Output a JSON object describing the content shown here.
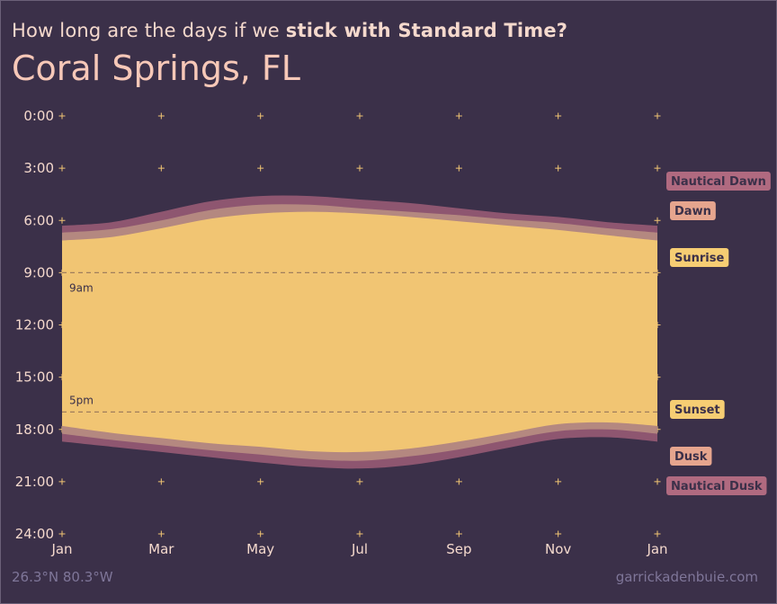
{
  "header": {
    "subtitle_prefix": "How long are the days if we ",
    "subtitle_bold": "stick with Standard Time?",
    "title": "Coral Springs, FL"
  },
  "footer": {
    "coords": "26.3°N 80.3°W",
    "credit": "garrickadenbuie.com"
  },
  "colors": {
    "background": "#3b3049",
    "nautical": "#8e5670",
    "civil": "#b48880",
    "day": "#f1c573",
    "tick": "#f1c573",
    "text": "#f5d9cd"
  },
  "chart_data": {
    "type": "area",
    "x_tick_labels": [
      "Jan",
      "Mar",
      "May",
      "Jul",
      "Sep",
      "Nov",
      "Jan"
    ],
    "y_tick_labels": [
      "0:00",
      "3:00",
      "6:00",
      "9:00",
      "12:00",
      "15:00",
      "18:00",
      "21:00",
      "24:00"
    ],
    "ylim": [
      0,
      24
    ],
    "y_reversed": true,
    "grid": "plus markers",
    "reference_lines": [
      {
        "y": 9,
        "label": "9am"
      },
      {
        "y": 17,
        "label": "5pm"
      }
    ],
    "x_month_positions": [
      0,
      2,
      4,
      6,
      8,
      10,
      12
    ],
    "x_months": [
      0,
      1,
      2,
      3,
      4,
      5,
      6,
      7,
      8,
      9,
      10,
      11,
      12
    ],
    "series": [
      {
        "name": "Nautical Dawn",
        "values": [
          6.3,
          6.1,
          5.5,
          4.9,
          4.6,
          4.6,
          4.8,
          5.0,
          5.3,
          5.6,
          5.8,
          6.1,
          6.3
        ]
      },
      {
        "name": "Dawn",
        "values": [
          6.7,
          6.5,
          6.0,
          5.4,
          5.1,
          5.1,
          5.3,
          5.5,
          5.7,
          5.95,
          6.15,
          6.45,
          6.7
        ]
      },
      {
        "name": "Sunrise",
        "values": [
          7.15,
          6.95,
          6.45,
          5.9,
          5.6,
          5.5,
          5.6,
          5.8,
          6.05,
          6.3,
          6.55,
          6.85,
          7.15
        ]
      },
      {
        "name": "Sunset",
        "values": [
          17.8,
          18.2,
          18.5,
          18.8,
          19.0,
          19.25,
          19.3,
          19.1,
          18.7,
          18.2,
          17.7,
          17.6,
          17.8
        ]
      },
      {
        "name": "Dusk",
        "values": [
          18.25,
          18.6,
          18.9,
          19.2,
          19.45,
          19.7,
          19.8,
          19.55,
          19.15,
          18.6,
          18.1,
          18.0,
          18.25
        ]
      },
      {
        "name": "Nautical Dusk",
        "values": [
          18.7,
          19.0,
          19.3,
          19.6,
          19.9,
          20.15,
          20.25,
          20.05,
          19.6,
          19.05,
          18.55,
          18.45,
          18.7
        ]
      }
    ]
  }
}
